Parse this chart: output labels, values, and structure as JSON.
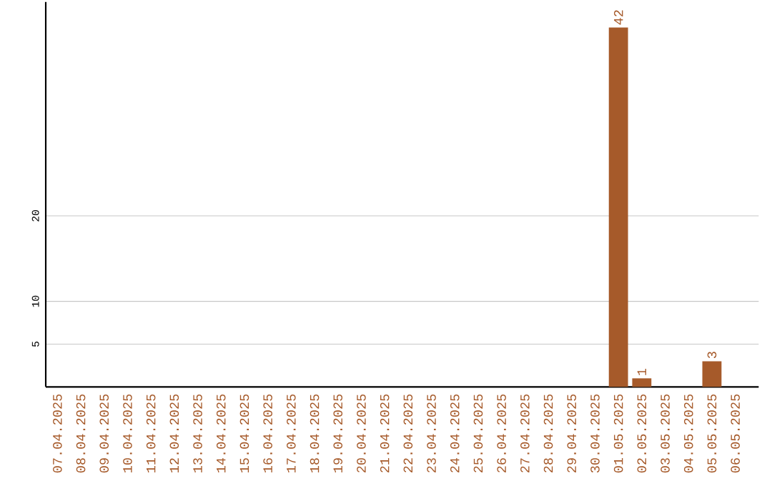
{
  "chart_data": {
    "type": "bar",
    "categories": [
      "07.04.2025",
      "08.04.2025",
      "09.04.2025",
      "10.04.2025",
      "11.04.2025",
      "12.04.2025",
      "13.04.2025",
      "14.04.2025",
      "15.04.2025",
      "16.04.2025",
      "17.04.2025",
      "18.04.2025",
      "19.04.2025",
      "20.04.2025",
      "21.04.2025",
      "22.04.2025",
      "23.04.2025",
      "24.04.2025",
      "25.04.2025",
      "26.04.2025",
      "27.04.2025",
      "28.04.2025",
      "29.04.2025",
      "30.04.2025",
      "01.05.2025",
      "02.05.2025",
      "03.05.2025",
      "04.05.2025",
      "05.05.2025",
      "06.05.2025"
    ],
    "values": [
      0,
      0,
      0,
      0,
      0,
      0,
      0,
      0,
      0,
      0,
      0,
      0,
      0,
      0,
      0,
      0,
      0,
      0,
      0,
      0,
      0,
      0,
      0,
      0,
      42,
      1,
      0,
      0,
      3,
      0
    ],
    "value_labels": [
      null,
      null,
      null,
      null,
      null,
      null,
      null,
      null,
      null,
      null,
      null,
      null,
      null,
      null,
      null,
      null,
      null,
      null,
      null,
      null,
      null,
      null,
      null,
      null,
      "42",
      "1",
      null,
      null,
      "3",
      null
    ],
    "color": "#a65a2a",
    "ylim": [
      0,
      45
    ],
    "yticks": [
      5,
      10,
      20
    ],
    "grid": "y"
  }
}
